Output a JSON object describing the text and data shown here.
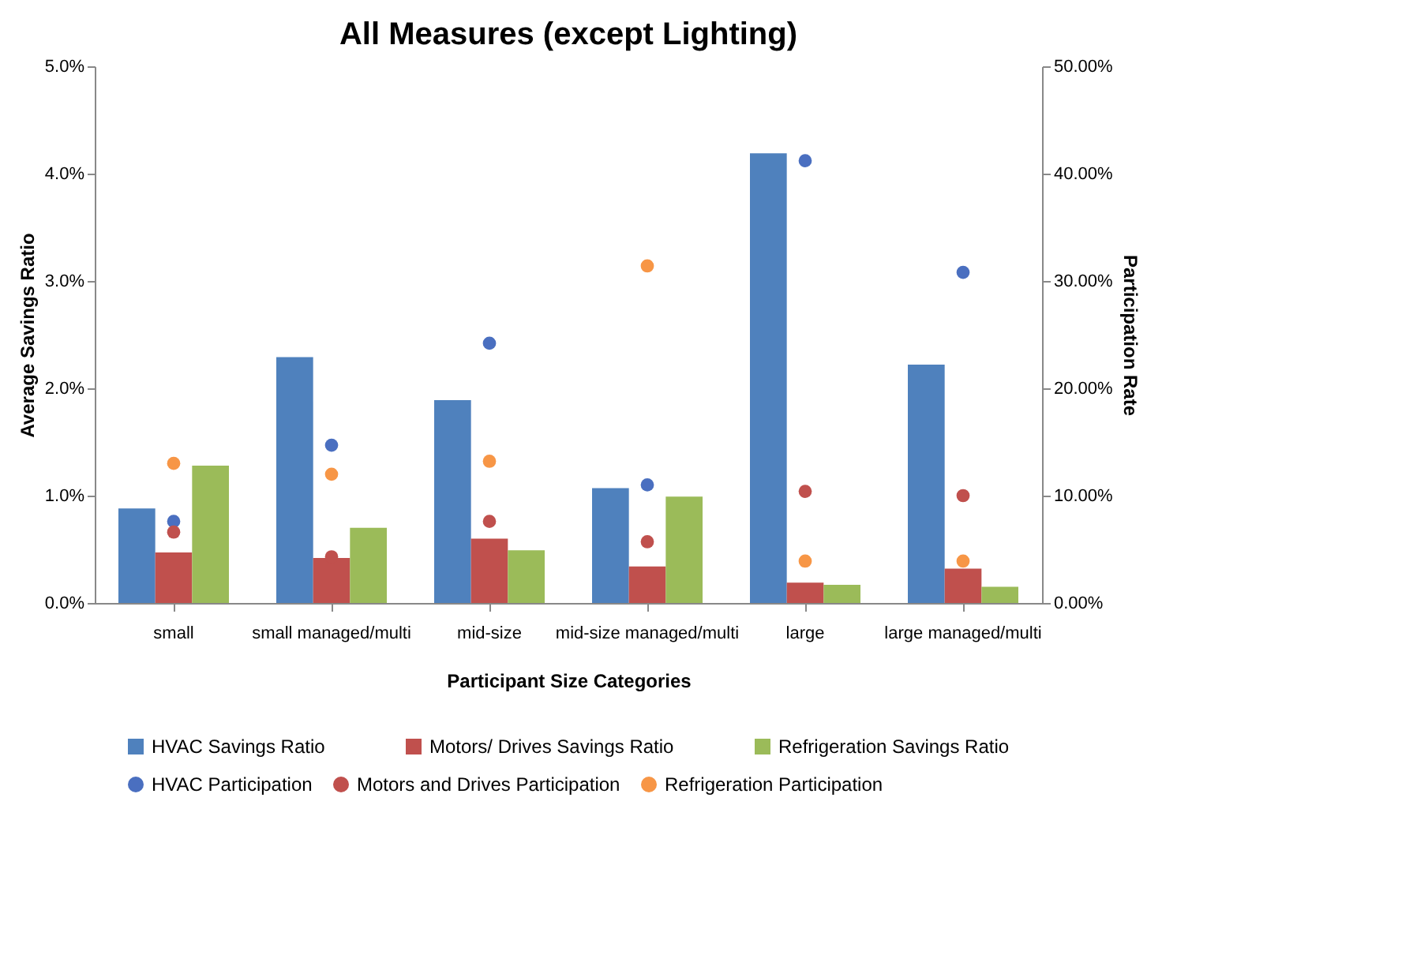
{
  "chart_data": {
    "type": "bar",
    "title": "All Measures (except Lighting)",
    "xlabel": "Participant Size Categories",
    "ylabel": "Average Savings Ratio",
    "y2label": "Participation Rate",
    "categories": [
      "small",
      "small managed/multi",
      "mid-size",
      "mid-size managed/multi",
      "large",
      "large managed/multi"
    ],
    "series": [
      {
        "name": "HVAC Savings Ratio",
        "color": "#4f81bd",
        "values": [
          0.88,
          2.29,
          1.89,
          1.07,
          4.19,
          2.22
        ]
      },
      {
        "name": "Motors/ Drives Savings Ratio",
        "color": "#c0504d",
        "values": [
          0.47,
          0.42,
          0.6,
          0.34,
          0.19,
          0.32
        ]
      },
      {
        "name": "Refrigeration Savings Ratio",
        "color": "#9bbb59",
        "values": [
          1.28,
          0.7,
          0.49,
          0.99,
          0.17,
          0.15
        ]
      },
      {
        "name": "HVAC Participation",
        "type": "scatter",
        "axis": "y2",
        "color": "#4a6fc0",
        "values": [
          7.6,
          14.7,
          24.2,
          11.0,
          41.2,
          30.8
        ]
      },
      {
        "name": "Motors and Drives Participation",
        "type": "scatter",
        "axis": "y2",
        "color": "#c0504d",
        "values": [
          6.6,
          4.3,
          7.6,
          5.7,
          10.4,
          10.0
        ]
      },
      {
        "name": "Refrigeration Participation",
        "type": "scatter",
        "axis": "y2",
        "color": "#f79646",
        "values": [
          13.0,
          12.0,
          13.2,
          31.4,
          3.9,
          3.9
        ]
      }
    ],
    "ylim": [
      0,
      5
    ],
    "yticks": [
      {
        "value": 0,
        "label": "0.0%"
      },
      {
        "value": 1,
        "label": "1.0%"
      },
      {
        "value": 2,
        "label": "2.0%"
      },
      {
        "value": 3,
        "label": "3.0%"
      },
      {
        "value": 4,
        "label": "4.0%"
      },
      {
        "value": 5,
        "label": "5.0%"
      }
    ],
    "y2lim": [
      0,
      50
    ],
    "y2ticks": [
      {
        "value": 0,
        "label": "0.00%"
      },
      {
        "value": 10,
        "label": "10.00%"
      },
      {
        "value": 20,
        "label": "20.00%"
      },
      {
        "value": 30,
        "label": "30.00%"
      },
      {
        "value": 40,
        "label": "40.00%"
      },
      {
        "value": 50,
        "label": "50.00%"
      }
    ],
    "grid": false,
    "legend": "bottom",
    "marker": "circle"
  }
}
